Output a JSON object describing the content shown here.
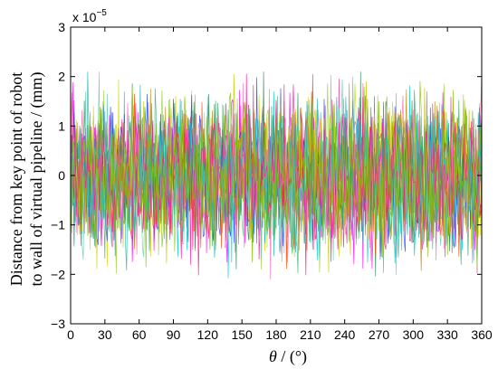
{
  "chart_data": {
    "type": "line",
    "title": "",
    "xlabel_symbol": "θ",
    "xlabel_unit": " / (°)",
    "ylabel_line1": "Distance from key point of robot",
    "ylabel_line2": "to wall of virtual pipeline / (mm)",
    "y_multiplier": "x 10",
    "y_multiplier_exp": "−5",
    "xlim": [
      0,
      360
    ],
    "ylim": [
      -3,
      3
    ],
    "x_ticks": [
      0,
      30,
      60,
      90,
      120,
      150,
      180,
      210,
      240,
      270,
      300,
      330,
      360
    ],
    "y_ticks": [
      -3,
      -2,
      -1,
      0,
      1,
      2,
      3
    ],
    "grid": false,
    "legend": "none",
    "series_description": "many overlapping noisy traces, approx. zero-mean, amplitude about ±2e-5 mm",
    "envelope": {
      "min": -2.1,
      "max": 2.1
    },
    "colors": [
      "#9acd32",
      "#d4d400",
      "#ff00ff",
      "#e0307a",
      "#20b2aa",
      "#2e8b57",
      "#ff4500",
      "#1e3cff",
      "#ff69b4",
      "#66cdaa",
      "#b8860b",
      "#00ced1",
      "#c8c800",
      "#3cb371",
      "#ff1493",
      "#7fbf00"
    ]
  }
}
